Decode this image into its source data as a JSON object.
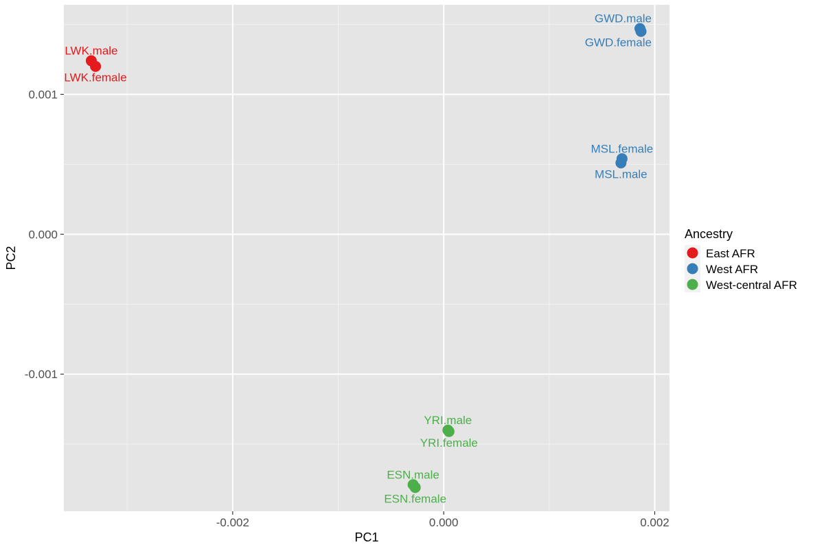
{
  "chart_data": {
    "type": "scatter",
    "title": "",
    "xlabel": "PC1",
    "ylabel": "PC2",
    "xlim": [
      -0.0036,
      0.00214
    ],
    "ylim": [
      -0.00198,
      0.00164
    ],
    "x_ticks": [
      {
        "value": -0.002,
        "label": "-0.002"
      },
      {
        "value": 0.0,
        "label": "0.000"
      },
      {
        "value": 0.002,
        "label": "0.002"
      }
    ],
    "y_ticks": [
      {
        "value": 0.001,
        "label": "0.001"
      },
      {
        "value": 0.0,
        "label": "0.000"
      },
      {
        "value": -0.001,
        "label": "-0.001"
      }
    ],
    "legend": {
      "title": "Ancestry",
      "position": "right",
      "entries": [
        {
          "name": "East AFR",
          "color": "#E41A1C"
        },
        {
          "name": "West AFR",
          "color": "#377EB8"
        },
        {
          "name": "West-central AFR",
          "color": "#4DAF4A"
        }
      ]
    },
    "points": [
      {
        "label": "LWK.male",
        "x": -0.00334,
        "y": 0.00124,
        "group": "East AFR",
        "label_pos": "above"
      },
      {
        "label": "LWK.female",
        "x": -0.0033,
        "y": 0.0012,
        "group": "East AFR",
        "label_pos": "below"
      },
      {
        "label": "GWD.male",
        "x": 0.00186,
        "y": 0.00147,
        "group": "West AFR",
        "label_pos": "above"
      },
      {
        "label": "GWD.female",
        "x": 0.00187,
        "y": 0.00145,
        "group": "West AFR",
        "label_pos": "below"
      },
      {
        "label": "MSL.female",
        "x": 0.00169,
        "y": 0.00054,
        "group": "West AFR",
        "label_pos": "above"
      },
      {
        "label": "MSL.male",
        "x": 0.00168,
        "y": 0.00051,
        "group": "West AFR",
        "label_pos": "below"
      },
      {
        "label": "YRI.male",
        "x": 4e-05,
        "y": -0.0014,
        "group": "West-central AFR",
        "label_pos": "above"
      },
      {
        "label": "YRI.female",
        "x": 5e-05,
        "y": -0.00141,
        "group": "West-central AFR",
        "label_pos": "below"
      },
      {
        "label": "ESN.male",
        "x": -0.00029,
        "y": -0.00179,
        "group": "West-central AFR",
        "label_pos": "above"
      },
      {
        "label": "ESN.female",
        "x": -0.00027,
        "y": -0.00181,
        "group": "West-central AFR",
        "label_pos": "below"
      }
    ]
  }
}
